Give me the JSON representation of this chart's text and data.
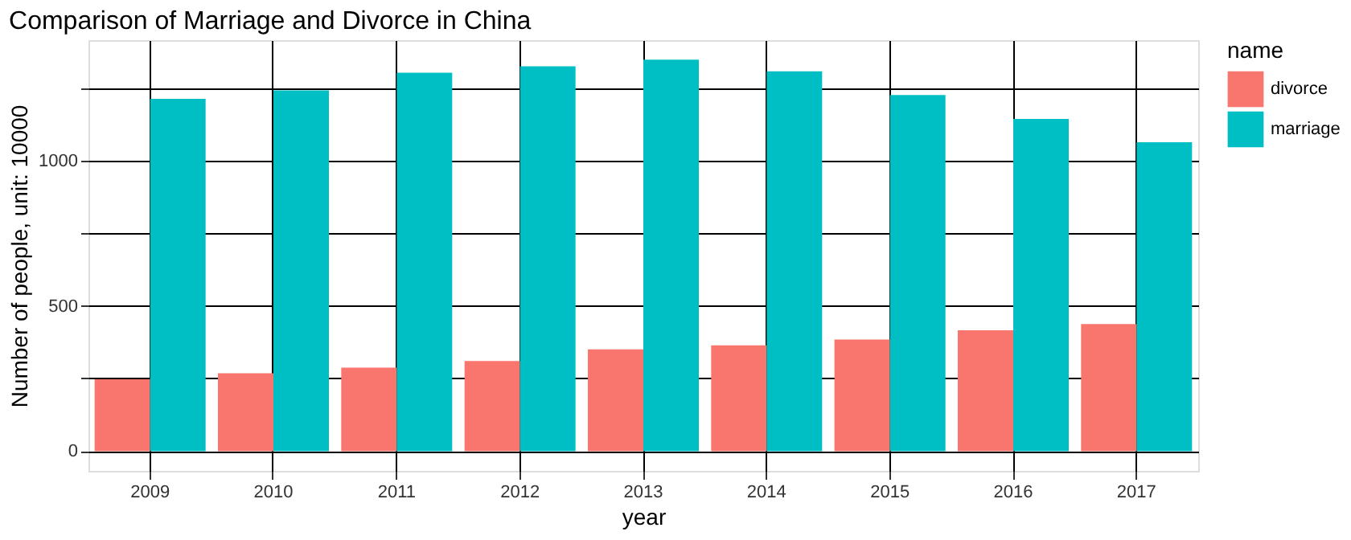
{
  "chart_data": {
    "type": "bar",
    "title": "Comparison of Marriage and Divorce in China",
    "xlabel": "year",
    "ylabel": "Number of people, unit: 10000",
    "legend_title": "name",
    "categories": [
      "2009",
      "2010",
      "2011",
      "2012",
      "2013",
      "2014",
      "2015",
      "2016",
      "2017"
    ],
    "series": [
      {
        "name": "divorce",
        "color": "#f8766d",
        "values": [
          247,
          268,
          287,
          310,
          350,
          364,
          384,
          416,
          437
        ]
      },
      {
        "name": "marriage",
        "color": "#00bfc4",
        "values": [
          1212,
          1241,
          1302,
          1324,
          1347,
          1307,
          1225,
          1143,
          1063
        ]
      }
    ],
    "ylim": [
      -68,
      1414
    ],
    "yticks": [
      0,
      {
        "value": 250,
        "label": null
      },
      500,
      {
        "value": 750,
        "label": null
      },
      1000,
      {
        "value": 1250,
        "label": null
      }
    ],
    "grid": true,
    "legend": "right"
  }
}
